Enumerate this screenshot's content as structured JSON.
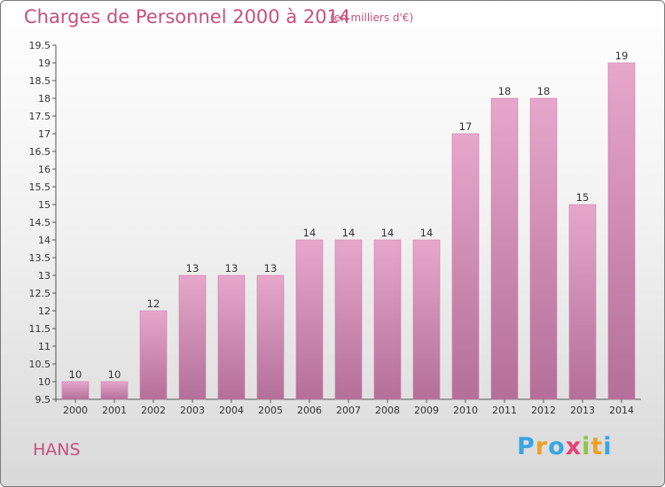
{
  "header": {
    "title": "Charges de Personnel 2000 à 2014",
    "subtitle": "(en milliers d'€)"
  },
  "footer": {
    "location": "HANS",
    "logo": {
      "letters": [
        "P",
        "r",
        "o",
        "x",
        "i",
        "t",
        "i"
      ],
      "colors": [
        "#3aa5e0",
        "#f0a020",
        "#3aa5e0",
        "#e8407a",
        "#8cc63f",
        "#f0a020",
        "#3aa5e0"
      ]
    }
  },
  "chart_data": {
    "type": "bar",
    "title": "Charges de Personnel 2000 à 2014",
    "subtitle": "(en milliers d'€)",
    "categories": [
      "2000",
      "2001",
      "2002",
      "2003",
      "2004",
      "2005",
      "2006",
      "2007",
      "2008",
      "2009",
      "2010",
      "2011",
      "2012",
      "2013",
      "2014"
    ],
    "values": [
      10,
      10,
      12,
      13,
      13,
      13,
      14,
      14,
      14,
      14,
      17,
      18,
      18,
      15,
      19
    ],
    "ylim": [
      9.5,
      19.5
    ],
    "yticks": [
      "9.5",
      "10",
      "10.5",
      "11",
      "11.5",
      "12",
      "12.5",
      "13",
      "13.5",
      "14",
      "14.5",
      "15",
      "15.5",
      "16",
      "16.5",
      "17",
      "17.5",
      "18",
      "18.5",
      "19",
      "19.5"
    ],
    "bar_color": "#d58cb5",
    "grid": false
  }
}
